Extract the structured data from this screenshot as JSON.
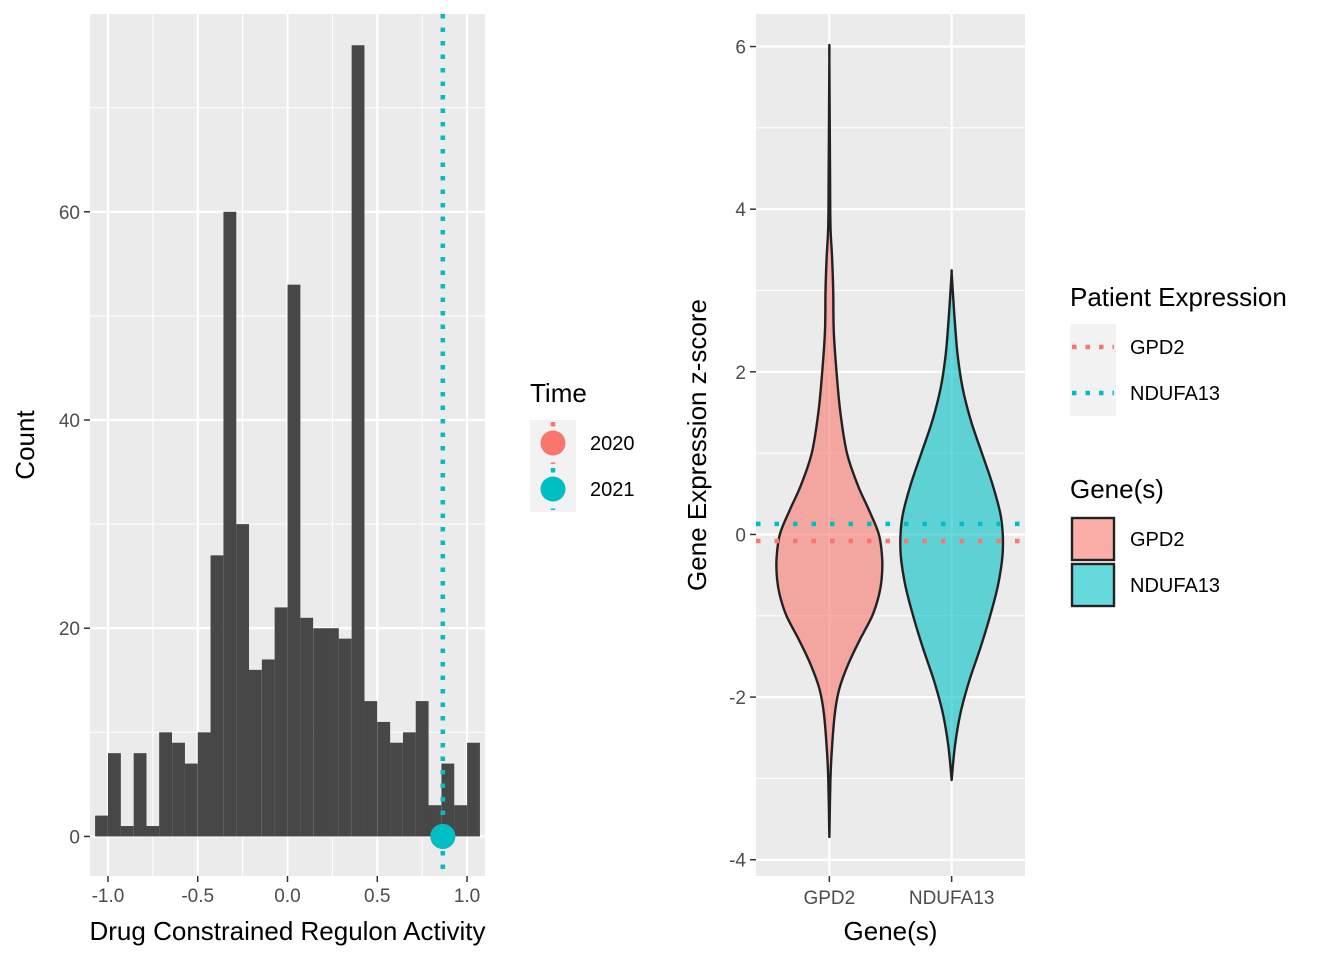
{
  "chart_data": [
    {
      "type": "bar",
      "subtype": "histogram",
      "xlabel": "Drug Constrained Regulon Activity",
      "ylabel": "Count",
      "xlim": [
        -1.1,
        1.1
      ],
      "ylim": [
        -3.8,
        79
      ],
      "x_ticks": [
        -1.0,
        -0.5,
        0.0,
        0.5,
        1.0
      ],
      "x_tick_labels": [
        "-1.0",
        "-0.5",
        "0.0",
        "0.5",
        "1.0"
      ],
      "y_ticks": [
        0,
        20,
        40,
        60
      ],
      "y_tick_labels": [
        "0",
        "20",
        "40",
        "60"
      ],
      "bin_width": 0.0714,
      "bins": [
        {
          "x": -1.036,
          "count": 2
        },
        {
          "x": -0.964,
          "count": 8
        },
        {
          "x": -0.893,
          "count": 1
        },
        {
          "x": -0.821,
          "count": 8
        },
        {
          "x": -0.75,
          "count": 1
        },
        {
          "x": -0.679,
          "count": 10
        },
        {
          "x": -0.607,
          "count": 9
        },
        {
          "x": -0.536,
          "count": 7
        },
        {
          "x": -0.464,
          "count": 10
        },
        {
          "x": -0.393,
          "count": 27
        },
        {
          "x": -0.321,
          "count": 60
        },
        {
          "x": -0.25,
          "count": 30
        },
        {
          "x": -0.179,
          "count": 16
        },
        {
          "x": -0.107,
          "count": 17
        },
        {
          "x": -0.036,
          "count": 22
        },
        {
          "x": 0.036,
          "count": 53
        },
        {
          "x": 0.107,
          "count": 21
        },
        {
          "x": 0.179,
          "count": 20
        },
        {
          "x": 0.25,
          "count": 20
        },
        {
          "x": 0.321,
          "count": 19
        },
        {
          "x": 0.393,
          "count": 76
        },
        {
          "x": 0.464,
          "count": 13
        },
        {
          "x": 0.536,
          "count": 11
        },
        {
          "x": 0.607,
          "count": 9
        },
        {
          "x": 0.679,
          "count": 10
        },
        {
          "x": 0.75,
          "count": 13
        },
        {
          "x": 0.821,
          "count": 3
        },
        {
          "x": 0.893,
          "count": 7
        },
        {
          "x": 0.964,
          "count": 3
        },
        {
          "x": 1.036,
          "count": 9
        }
      ],
      "markers": [
        {
          "time": "2020",
          "x": 0.865,
          "y": 0,
          "color": "#F8766D"
        },
        {
          "time": "2021",
          "x": 0.865,
          "y": 0,
          "color": "#00BFC4"
        }
      ],
      "vlines": [
        {
          "time": "2020",
          "x": 0.865,
          "color": "#F8766D",
          "style": "dotted"
        },
        {
          "time": "2021",
          "x": 0.865,
          "color": "#00BFC4",
          "style": "dotted"
        }
      ],
      "legend": {
        "title": "Time",
        "items": [
          {
            "label": "2020",
            "color": "#F8766D"
          },
          {
            "label": "2021",
            "color": "#00BFC4"
          }
        ]
      },
      "grid": true,
      "bar_color": "#474747",
      "panel_bg": "#EBEBEB"
    },
    {
      "type": "violin",
      "xlabel": "Gene(s)",
      "ylabel": "Gene Expression z-score",
      "categories": [
        "GPD2",
        "NDUFA13"
      ],
      "ylim": [
        -4.2,
        6.4
      ],
      "y_ticks": [
        -4,
        -2,
        0,
        2,
        4,
        6
      ],
      "y_tick_labels": [
        "-4",
        "-2",
        "0",
        "2",
        "4",
        "6"
      ],
      "series": [
        {
          "name": "GPD2",
          "color": "#F8766D",
          "fill_alpha": 0.6,
          "min": -3.72,
          "max": 5.85,
          "profile": [
            [
              -3.72,
              0.0
            ],
            [
              -3.0,
              0.02
            ],
            [
              -2.6,
              0.05
            ],
            [
              -2.2,
              0.1
            ],
            [
              -1.9,
              0.18
            ],
            [
              -1.6,
              0.34
            ],
            [
              -1.3,
              0.55
            ],
            [
              -1.0,
              0.78
            ],
            [
              -0.75,
              0.9
            ],
            [
              -0.55,
              0.95
            ],
            [
              -0.3,
              0.96
            ],
            [
              0.0,
              0.9
            ],
            [
              0.3,
              0.72
            ],
            [
              0.6,
              0.52
            ],
            [
              1.0,
              0.32
            ],
            [
              1.5,
              0.2
            ],
            [
              2.0,
              0.13
            ],
            [
              2.5,
              0.08
            ],
            [
              3.0,
              0.07
            ],
            [
              3.4,
              0.05
            ],
            [
              3.8,
              0.02
            ],
            [
              4.5,
              0.012
            ],
            [
              5.85,
              0.0
            ]
          ],
          "patient_expression": -0.08
        },
        {
          "name": "NDUFA13",
          "color": "#00BFC4",
          "fill_alpha": 0.6,
          "min": -3.02,
          "max": 3.22,
          "profile": [
            [
              -3.02,
              0.0
            ],
            [
              -2.6,
              0.06
            ],
            [
              -2.2,
              0.16
            ],
            [
              -1.8,
              0.32
            ],
            [
              -1.4,
              0.52
            ],
            [
              -1.0,
              0.7
            ],
            [
              -0.6,
              0.85
            ],
            [
              -0.2,
              0.93
            ],
            [
              0.2,
              0.9
            ],
            [
              0.6,
              0.75
            ],
            [
              1.0,
              0.55
            ],
            [
              1.4,
              0.35
            ],
            [
              1.8,
              0.2
            ],
            [
              2.2,
              0.11
            ],
            [
              2.6,
              0.06
            ],
            [
              3.0,
              0.02
            ],
            [
              3.22,
              0.0
            ]
          ],
          "patient_expression": 0.13
        }
      ],
      "legends": [
        {
          "title": "Patient Expression",
          "type": "line",
          "items": [
            {
              "label": "GPD2",
              "color": "#F8766D"
            },
            {
              "label": "NDUFA13",
              "color": "#00BFC4"
            }
          ]
        },
        {
          "title": "Gene(s)",
          "type": "fill",
          "items": [
            {
              "label": "GPD2",
              "color": "#F8766D"
            },
            {
              "label": "NDUFA13",
              "color": "#00BFC4"
            }
          ]
        }
      ],
      "grid": true,
      "panel_bg": "#EBEBEB"
    }
  ]
}
